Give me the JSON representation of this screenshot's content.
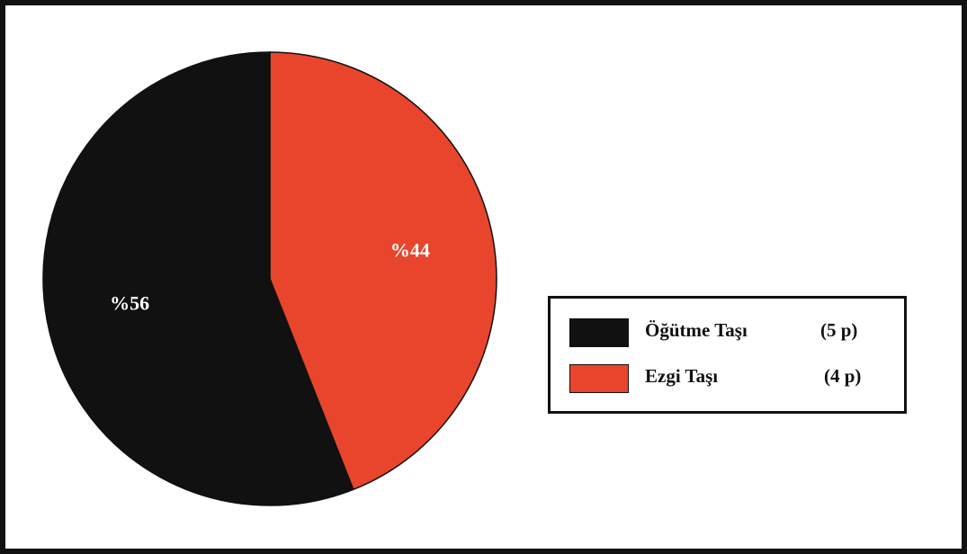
{
  "chart_data": {
    "type": "pie",
    "title": "",
    "slices": [
      {
        "label": "Öğütme Taşı",
        "count_label": "(5 p)",
        "value": 56,
        "value_label": "%56",
        "color": "#111111"
      },
      {
        "label": "Ezgi Taşı",
        "count_label": "(4 p)",
        "value": 44,
        "value_label": "%44",
        "color": "#e8452c"
      }
    ],
    "legend": "right"
  }
}
